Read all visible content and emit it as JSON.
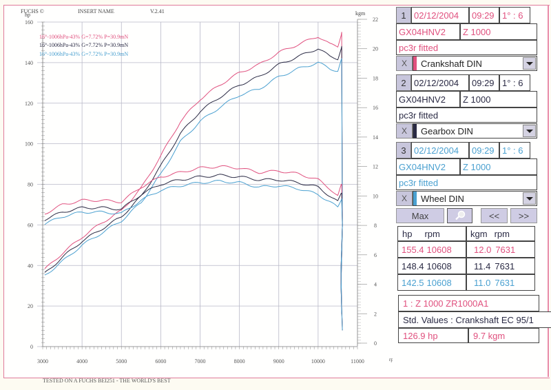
{
  "header": {
    "brand": "FUCHS ©",
    "insert_name": "INSERT NAME",
    "version": "V.2.41",
    "left_axis_unit": "hp",
    "right_axis_unit": "kgm",
    "x_axis_unit": "rpm"
  },
  "legend": [
    {
      "text": "16°-1006hPa-43% G=7.72% P=30.9mN",
      "color": "#e0507e"
    },
    {
      "text": "16°-1006hPa-43% G=7.72% P=30.9mN",
      "color": "#2a2a44"
    },
    {
      "text": "16°-1006hPa-43% G=7.72% P=30.9mN",
      "color": "#4aa0d0"
    }
  ],
  "footer": "TESTED ON A FUCHS BEI251 - THE WORLD'S BEST",
  "runs": [
    {
      "index": "1",
      "date": "02/12/2004",
      "time": "09:29",
      "ratio": "1° : 6",
      "reg": "GX04HNV2",
      "model": "Z 1000",
      "note": "pc3r fitted",
      "close": "X",
      "correction": "Crankshaft DIN",
      "color": "#e0507e"
    },
    {
      "index": "2",
      "date": "02/12/2004",
      "time": "09:29",
      "ratio": "1° : 6",
      "reg": "GX04HNV2",
      "model": "Z 1000",
      "note": "pc3r fitted",
      "close": "X",
      "correction": "Gearbox DIN",
      "color": "#2a2a44"
    },
    {
      "index": "3",
      "date": "02/12/2004",
      "time": "09:29",
      "ratio": "1° : 6",
      "reg": "GX04HNV2",
      "model": "Z 1000",
      "note": "pc3r fitted",
      "close": "X",
      "correction": "Wheel DIN",
      "color": "#4aa0d0"
    }
  ],
  "controls": {
    "max_label": "Max",
    "zoom_icon": "magnifier-icon",
    "prev_label": "<<",
    "next_label": ">>"
  },
  "peaks": {
    "headers": {
      "hp": "hp",
      "rpm1": "rpm",
      "kgm": "kgm",
      "rpm2": "rpm"
    },
    "rows": [
      {
        "hp": "155.4",
        "hp_rpm": "10608",
        "kgm": "12.0",
        "kgm_rpm": "7631",
        "color": "#e0507e"
      },
      {
        "hp": "148.4",
        "hp_rpm": "10608",
        "kgm": "11.4",
        "kgm_rpm": "7631",
        "color": "#2a2a44"
      },
      {
        "hp": "142.5",
        "hp_rpm": "10608",
        "kgm": "11.0",
        "kgm_rpm": "7631",
        "color": "#4aa0d0"
      }
    ]
  },
  "summary": {
    "title": "1 : Z 1000  ZR1000A1",
    "std_values": "Std. Values : Crankshaft EC 95/1",
    "hp_value": "126.9  hp",
    "kgm_value": "9.7  kgm"
  },
  "chart_data": {
    "type": "line",
    "title": "",
    "xlabel": "rpm",
    "ylabel": "hp",
    "y2label": "kgm",
    "xlim": [
      3000,
      11000
    ],
    "ylim": [
      0,
      160
    ],
    "y2lim": [
      0,
      22
    ],
    "x_ticks": [
      3000,
      4000,
      5000,
      6000,
      7000,
      8000,
      9000,
      10000,
      11000
    ],
    "y_ticks": [
      0,
      20,
      40,
      60,
      80,
      100,
      120,
      140,
      160
    ],
    "y2_ticks": [
      0,
      2,
      4,
      6,
      8,
      10,
      12,
      14,
      16,
      18,
      20,
      22
    ],
    "grid": true,
    "legend_position": "upper-left",
    "x": [
      3050,
      3500,
      4000,
      4500,
      5000,
      5500,
      6000,
      6500,
      7000,
      7500,
      8000,
      8500,
      9000,
      9500,
      10000,
      10300,
      10500,
      10600
    ],
    "series": [
      {
        "name": "Power Crankshaft DIN (hp)",
        "axis": "left",
        "color": "#e0507e",
        "values": [
          38,
          46,
          54,
          61,
          67,
          78,
          94,
          111,
          122,
          129,
          135,
          139,
          145,
          149,
          153,
          149,
          148,
          155
        ]
      },
      {
        "name": "Power Gearbox DIN (hp)",
        "axis": "left",
        "color": "#2a2a44",
        "values": [
          36,
          44,
          52,
          58,
          64,
          74,
          89,
          105,
          116,
          123,
          129,
          133,
          139,
          143,
          147,
          143,
          142,
          148
        ]
      },
      {
        "name": "Power Wheel DIN (hp)",
        "axis": "left",
        "color": "#4aa0d0",
        "values": [
          35,
          42,
          50,
          56,
          62,
          71,
          85,
          101,
          111,
          118,
          124,
          127,
          133,
          137,
          140,
          137,
          136,
          142
        ]
      },
      {
        "name": "Torque Crankshaft DIN (kgm)",
        "axis": "right",
        "color": "#e0507e",
        "values": [
          8.8,
          9.4,
          9.7,
          9.7,
          9.6,
          10.6,
          11.3,
          11.6,
          11.9,
          12.0,
          11.9,
          11.6,
          11.7,
          11.5,
          11.1,
          10.5,
          10.0,
          10.8
        ]
      },
      {
        "name": "Torque Gearbox DIN (kgm)",
        "axis": "right",
        "color": "#2a2a44",
        "values": [
          8.4,
          8.9,
          9.2,
          9.2,
          9.1,
          10.1,
          10.8,
          11.1,
          11.3,
          11.4,
          11.3,
          11.1,
          11.1,
          10.9,
          10.6,
          10.0,
          9.6,
          10.2
        ]
      },
      {
        "name": "Torque Wheel DIN (kgm)",
        "axis": "right",
        "color": "#4aa0d0",
        "values": [
          8.1,
          8.6,
          8.9,
          8.9,
          8.8,
          9.7,
          10.4,
          10.7,
          10.9,
          11.0,
          10.9,
          10.6,
          10.7,
          10.5,
          10.1,
          9.6,
          9.2,
          9.8
        ]
      }
    ]
  }
}
